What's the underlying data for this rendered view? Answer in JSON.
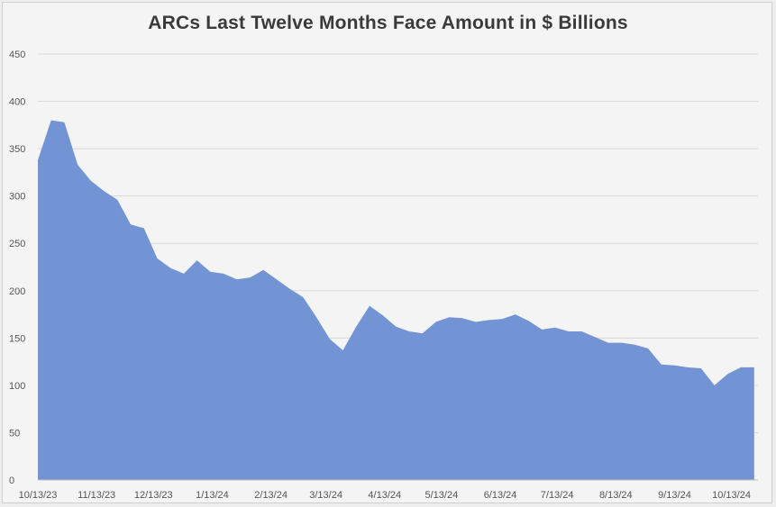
{
  "chart_data": {
    "type": "area",
    "title": "ARCs Last Twelve Months Face Amount in $ Billions",
    "xlabel": "",
    "ylabel": "",
    "ylim": [
      0,
      450
    ],
    "yticks": [
      0,
      50,
      100,
      150,
      200,
      250,
      300,
      350,
      400,
      450
    ],
    "xticks": [
      "10/13/23",
      "11/13/23",
      "12/13/23",
      "1/13/24",
      "2/13/24",
      "3/13/24",
      "4/13/24",
      "5/13/24",
      "6/13/24",
      "7/13/24",
      "8/13/24",
      "9/13/24",
      "10/13/24"
    ],
    "grid": true,
    "color": "#7394d4",
    "series": [
      {
        "x": [
          "10/13/23",
          "10/20/23",
          "10/27/23",
          "11/3/23",
          "11/10/23",
          "11/17/23",
          "11/24/23",
          "12/1/23",
          "12/8/23",
          "12/15/23",
          "12/22/23",
          "12/29/23",
          "1/5/24",
          "1/12/24",
          "1/19/24",
          "1/26/24",
          "2/2/24",
          "2/9/24",
          "2/16/24",
          "2/23/24",
          "3/1/24",
          "3/8/24",
          "3/15/24",
          "3/22/24",
          "3/29/24",
          "4/5/24",
          "4/12/24",
          "4/19/24",
          "4/26/24",
          "5/3/24",
          "5/10/24",
          "5/17/24",
          "5/24/24",
          "5/31/24",
          "6/7/24",
          "6/14/24",
          "6/21/24",
          "6/28/24",
          "7/5/24",
          "7/12/24",
          "7/19/24",
          "7/26/24",
          "8/2/24",
          "8/9/24",
          "8/16/24",
          "8/23/24",
          "8/30/24",
          "9/6/24",
          "9/13/24",
          "9/20/24",
          "9/27/24",
          "10/4/24",
          "10/11/24",
          "10/18/24",
          "10/25/24"
        ],
        "values": [
          338,
          380,
          378,
          333,
          316,
          305,
          296,
          270,
          266,
          234,
          224,
          218,
          232,
          220,
          218,
          212,
          214,
          222,
          212,
          202,
          193,
          172,
          149,
          137,
          162,
          184,
          174,
          162,
          157,
          155,
          167,
          172,
          171,
          167,
          169,
          170,
          175,
          168,
          159,
          161,
          157,
          157,
          151,
          145,
          145,
          143,
          139,
          122,
          121,
          119,
          118,
          100,
          112,
          119,
          119
        ]
      }
    ]
  }
}
